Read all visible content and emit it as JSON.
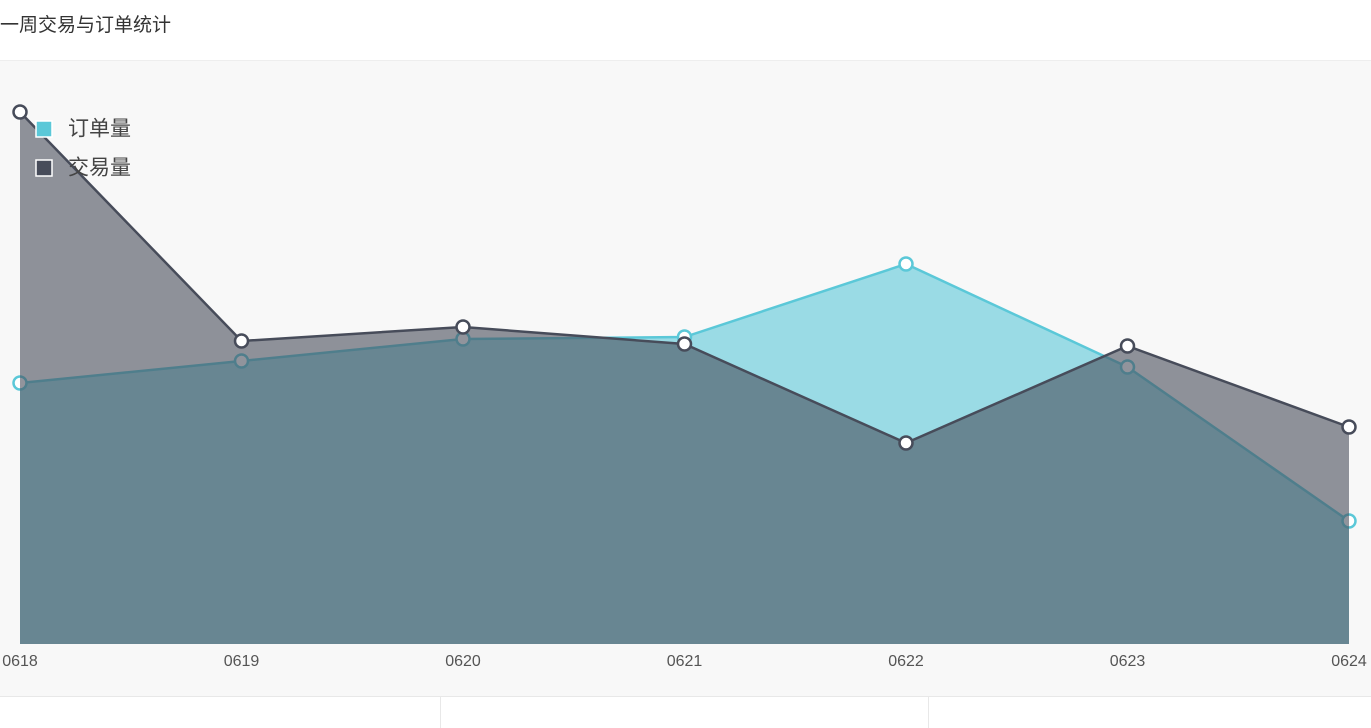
{
  "chart_data": {
    "type": "area",
    "title": "一周交易与订单统计",
    "categories": [
      "0618",
      "0619",
      "0620",
      "0621",
      "0622",
      "0623",
      "0624"
    ],
    "ylim": [
      0,
      600
    ],
    "series": [
      {
        "name": "订单量",
        "color": "#5bc8d8",
        "values": [
          261,
          283,
          305,
          307,
          380,
          277,
          123
        ]
      },
      {
        "name": "交易量",
        "color": "#474c5a",
        "values": [
          532,
          303,
          317,
          300,
          201,
          298,
          217
        ]
      }
    ]
  }
}
